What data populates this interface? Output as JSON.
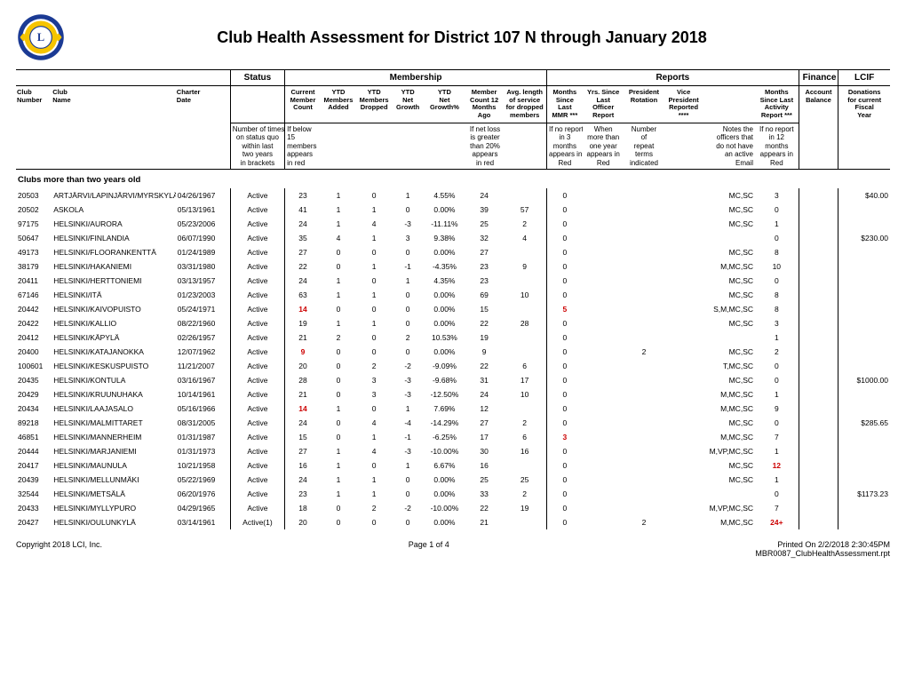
{
  "title": "Club Health Assessment for District 107 N through January 2018",
  "logo_colors": {
    "outer": "#1b3a94",
    "inner": "#f6c400",
    "stroke": "#1b3a94"
  },
  "group_headers": {
    "status": "Status",
    "membership": "Membership",
    "reports": "Reports",
    "finance": "Finance",
    "lcif": "LCIF"
  },
  "col_headers": {
    "club_number": "Club\nNumber",
    "club_name": "Club\nName",
    "charter_date": "Charter\nDate",
    "status_blank": "",
    "current_member_count": "Current\nMember\nCount",
    "ytd_added": "YTD\nMembers\nAdded",
    "ytd_dropped": "YTD\nMembers\nDropped",
    "ytd_net_growth": "YTD\nNet\nGrowth",
    "ytd_net_growth_pct": "YTD\nNet\nGrowth%",
    "member_count_12mo": "Member\nCount 12\nMonths\nAgo",
    "avg_length_service": "Avg. length\nof service\nfor dropped\nmembers",
    "months_since_last_mmr": "Months\nSince\nLast\nMMR ***",
    "yrs_since_last_officer": "Yrs. Since\nLast\nOfficer\nReport",
    "president_rotation": "President\nRotation",
    "vice_president_reported": "Vice\nPresident\nReported\n****",
    "notes_blank": "",
    "months_since_last_activity": "Months\nSince Last\nActivity\nReport ***",
    "account_balance": "Account\nBalance",
    "donations": "Donations\nfor current\nFiscal\nYear"
  },
  "notes": {
    "status": "Number of times\non status quo\nwithin last\ntwo years\nin brackets",
    "low_members": "If below\n15\nmembers\nappears\nin red",
    "net_loss": "If net loss\nis greater\nthan 20%\nappears\nin red",
    "no_report": "If no report\nin 3\nmonths\nappears in\nRed",
    "officer_year": "When\nmore than\none year\nappears in\nRed",
    "repeat_terms": "Number\nof\nrepeat\nterms\nindicated",
    "no_email": "Notes the\nofficers that\ndo not have\nan active\nEmail",
    "activity_12": "If no report\nin 12\nmonths\nappears in\nRed"
  },
  "section_title": "Clubs more than two years old",
  "rows": [
    {
      "num": "20503",
      "name": "ARTJÄRVI/LAPINJÄRVI/MYRSKYLÄ",
      "charter": "04/26/1967",
      "status": "Active",
      "count": "23",
      "added": "1",
      "dropped": "0",
      "net": "1",
      "pct": "4.55%",
      "ago": "24",
      "avglen": "",
      "mmr": "0",
      "yrs": "",
      "rot": "",
      "vp": "",
      "notes": "MC,SC",
      "act": "3",
      "bal": "",
      "don": "$40.00"
    },
    {
      "num": "20502",
      "name": "ASKOLA",
      "charter": "05/13/1961",
      "status": "Active",
      "count": "41",
      "added": "1",
      "dropped": "1",
      "net": "0",
      "pct": "0.00%",
      "ago": "39",
      "avglen": "57",
      "mmr": "0",
      "yrs": "",
      "rot": "",
      "vp": "",
      "notes": "MC,SC",
      "act": "0",
      "bal": "",
      "don": ""
    },
    {
      "num": "97175",
      "name": "HELSINKI/AURORA",
      "charter": "05/23/2006",
      "status": "Active",
      "count": "24",
      "added": "1",
      "dropped": "4",
      "net": "-3",
      "pct": "-11.11%",
      "ago": "25",
      "avglen": "2",
      "mmr": "0",
      "yrs": "",
      "rot": "",
      "vp": "",
      "notes": "MC,SC",
      "act": "1",
      "bal": "",
      "don": ""
    },
    {
      "num": "50647",
      "name": "HELSINKI/FINLANDIA",
      "charter": "06/07/1990",
      "status": "Active",
      "count": "35",
      "added": "4",
      "dropped": "1",
      "net": "3",
      "pct": "9.38%",
      "ago": "32",
      "avglen": "4",
      "mmr": "0",
      "yrs": "",
      "rot": "",
      "vp": "",
      "notes": "",
      "act": "0",
      "bal": "",
      "don": "$230.00"
    },
    {
      "num": "49173",
      "name": "HELSINKI/FLOORANKENTTÄ",
      "charter": "01/24/1989",
      "status": "Active",
      "count": "27",
      "added": "0",
      "dropped": "0",
      "net": "0",
      "pct": "0.00%",
      "ago": "27",
      "avglen": "",
      "mmr": "0",
      "yrs": "",
      "rot": "",
      "vp": "",
      "notes": "MC,SC",
      "act": "8",
      "bal": "",
      "don": ""
    },
    {
      "num": "38179",
      "name": "HELSINKI/HAKANIEMI",
      "charter": "03/31/1980",
      "status": "Active",
      "count": "22",
      "added": "0",
      "dropped": "1",
      "net": "-1",
      "pct": "-4.35%",
      "ago": "23",
      "avglen": "9",
      "mmr": "0",
      "yrs": "",
      "rot": "",
      "vp": "",
      "notes": "M,MC,SC",
      "act": "10",
      "bal": "",
      "don": ""
    },
    {
      "num": "20411",
      "name": "HELSINKI/HERTTONIEMI",
      "charter": "03/13/1957",
      "status": "Active",
      "count": "24",
      "added": "1",
      "dropped": "0",
      "net": "1",
      "pct": "4.35%",
      "ago": "23",
      "avglen": "",
      "mmr": "0",
      "yrs": "",
      "rot": "",
      "vp": "",
      "notes": "MC,SC",
      "act": "0",
      "bal": "",
      "don": ""
    },
    {
      "num": "67146",
      "name": "HELSINKI/ITÄ",
      "charter": "01/23/2003",
      "status": "Active",
      "count": "63",
      "added": "1",
      "dropped": "1",
      "net": "0",
      "pct": "0.00%",
      "ago": "69",
      "avglen": "10",
      "mmr": "0",
      "yrs": "",
      "rot": "",
      "vp": "",
      "notes": "MC,SC",
      "act": "8",
      "bal": "",
      "don": ""
    },
    {
      "num": "20442",
      "name": "HELSINKI/KAIVOPUISTO",
      "charter": "05/24/1971",
      "status": "Active",
      "count": "14",
      "count_red": true,
      "added": "0",
      "dropped": "0",
      "net": "0",
      "pct": "0.00%",
      "ago": "15",
      "avglen": "",
      "mmr": "5",
      "mmr_red": true,
      "yrs": "",
      "rot": "",
      "vp": "",
      "notes": "S,M,MC,SC",
      "act": "8",
      "bal": "",
      "don": ""
    },
    {
      "num": "20422",
      "name": "HELSINKI/KALLIO",
      "charter": "08/22/1960",
      "status": "Active",
      "count": "19",
      "added": "1",
      "dropped": "1",
      "net": "0",
      "pct": "0.00%",
      "ago": "22",
      "avglen": "28",
      "mmr": "0",
      "yrs": "",
      "rot": "",
      "vp": "",
      "notes": "MC,SC",
      "act": "3",
      "bal": "",
      "don": ""
    },
    {
      "num": "20412",
      "name": "HELSINKI/KÄPYLÄ",
      "charter": "02/26/1957",
      "status": "Active",
      "count": "21",
      "added": "2",
      "dropped": "0",
      "net": "2",
      "pct": "10.53%",
      "ago": "19",
      "avglen": "",
      "mmr": "0",
      "yrs": "",
      "rot": "",
      "vp": "",
      "notes": "",
      "act": "1",
      "bal": "",
      "don": ""
    },
    {
      "num": "20400",
      "name": "HELSINKI/KATAJANOKKA",
      "charter": "12/07/1962",
      "status": "Active",
      "count": "9",
      "count_red": true,
      "added": "0",
      "dropped": "0",
      "net": "0",
      "pct": "0.00%",
      "ago": "9",
      "avglen": "",
      "mmr": "0",
      "yrs": "",
      "rot": "2",
      "vp": "",
      "notes": "MC,SC",
      "act": "2",
      "bal": "",
      "don": ""
    },
    {
      "num": "100601",
      "name": "HELSINKI/KESKUSPUISTO",
      "charter": "11/21/2007",
      "status": "Active",
      "count": "20",
      "added": "0",
      "dropped": "2",
      "net": "-2",
      "pct": "-9.09%",
      "ago": "22",
      "avglen": "6",
      "mmr": "0",
      "yrs": "",
      "rot": "",
      "vp": "",
      "notes": "T,MC,SC",
      "act": "0",
      "bal": "",
      "don": ""
    },
    {
      "num": "20435",
      "name": "HELSINKI/KONTULA",
      "charter": "03/16/1967",
      "status": "Active",
      "count": "28",
      "added": "0",
      "dropped": "3",
      "net": "-3",
      "pct": "-9.68%",
      "ago": "31",
      "avglen": "17",
      "mmr": "0",
      "yrs": "",
      "rot": "",
      "vp": "",
      "notes": "MC,SC",
      "act": "0",
      "bal": "",
      "don": "$1000.00"
    },
    {
      "num": "20429",
      "name": "HELSINKI/KRUUNUHAKA",
      "charter": "10/14/1961",
      "status": "Active",
      "count": "21",
      "added": "0",
      "dropped": "3",
      "net": "-3",
      "pct": "-12.50%",
      "ago": "24",
      "avglen": "10",
      "mmr": "0",
      "yrs": "",
      "rot": "",
      "vp": "",
      "notes": "M,MC,SC",
      "act": "1",
      "bal": "",
      "don": ""
    },
    {
      "num": "20434",
      "name": "HELSINKI/LAAJASALO",
      "charter": "05/16/1966",
      "status": "Active",
      "count": "14",
      "count_red": true,
      "added": "1",
      "dropped": "0",
      "net": "1",
      "pct": "7.69%",
      "ago": "12",
      "avglen": "",
      "mmr": "0",
      "yrs": "",
      "rot": "",
      "vp": "",
      "notes": "M,MC,SC",
      "act": "9",
      "bal": "",
      "don": ""
    },
    {
      "num": "89218",
      "name": "HELSINKI/MALMITTARET",
      "charter": "08/31/2005",
      "status": "Active",
      "count": "24",
      "added": "0",
      "dropped": "4",
      "net": "-4",
      "pct": "-14.29%",
      "ago": "27",
      "avglen": "2",
      "mmr": "0",
      "yrs": "",
      "rot": "",
      "vp": "",
      "notes": "MC,SC",
      "act": "0",
      "bal": "",
      "don": "$285.65"
    },
    {
      "num": "46851",
      "name": "HELSINKI/MANNERHEIM",
      "charter": "01/31/1987",
      "status": "Active",
      "count": "15",
      "added": "0",
      "dropped": "1",
      "net": "-1",
      "pct": "-6.25%",
      "ago": "17",
      "avglen": "6",
      "mmr": "3",
      "mmr_red": true,
      "yrs": "",
      "rot": "",
      "vp": "",
      "notes": "M,MC,SC",
      "act": "7",
      "bal": "",
      "don": ""
    },
    {
      "num": "20444",
      "name": "HELSINKI/MARJANIEMI",
      "charter": "01/31/1973",
      "status": "Active",
      "count": "27",
      "added": "1",
      "dropped": "4",
      "net": "-3",
      "pct": "-10.00%",
      "ago": "30",
      "avglen": "16",
      "mmr": "0",
      "yrs": "",
      "rot": "",
      "vp": "",
      "notes": "M,VP,MC,SC",
      "act": "1",
      "bal": "",
      "don": ""
    },
    {
      "num": "20417",
      "name": "HELSINKI/MAUNULA",
      "charter": "10/21/1958",
      "status": "Active",
      "count": "16",
      "added": "1",
      "dropped": "0",
      "net": "1",
      "pct": "6.67%",
      "ago": "16",
      "avglen": "",
      "mmr": "0",
      "yrs": "",
      "rot": "",
      "vp": "",
      "notes": "MC,SC",
      "act": "12",
      "act_red": true,
      "bal": "",
      "don": ""
    },
    {
      "num": "20439",
      "name": "HELSINKI/MELLUNMÄKI",
      "charter": "05/22/1969",
      "status": "Active",
      "count": "24",
      "added": "1",
      "dropped": "1",
      "net": "0",
      "pct": "0.00%",
      "ago": "25",
      "avglen": "25",
      "mmr": "0",
      "yrs": "",
      "rot": "",
      "vp": "",
      "notes": "MC,SC",
      "act": "1",
      "bal": "",
      "don": ""
    },
    {
      "num": "32544",
      "name": "HELSINKI/METSÄLÄ",
      "charter": "06/20/1976",
      "status": "Active",
      "count": "23",
      "added": "1",
      "dropped": "1",
      "net": "0",
      "pct": "0.00%",
      "ago": "33",
      "avglen": "2",
      "mmr": "0",
      "yrs": "",
      "rot": "",
      "vp": "",
      "notes": "",
      "act": "0",
      "bal": "",
      "don": "$1173.23"
    },
    {
      "num": "20433",
      "name": "HELSINKI/MYLLYPURO",
      "charter": "04/29/1965",
      "status": "Active",
      "count": "18",
      "added": "0",
      "dropped": "2",
      "net": "-2",
      "pct": "-10.00%",
      "ago": "22",
      "avglen": "19",
      "mmr": "0",
      "yrs": "",
      "rot": "",
      "vp": "",
      "notes": "M,VP,MC,SC",
      "act": "7",
      "bal": "",
      "don": ""
    },
    {
      "num": "20427",
      "name": "HELSINKI/OULUNKYLÄ",
      "charter": "03/14/1961",
      "status": "Active(1)",
      "count": "20",
      "added": "0",
      "dropped": "0",
      "net": "0",
      "pct": "0.00%",
      "ago": "21",
      "avglen": "",
      "mmr": "0",
      "yrs": "",
      "rot": "2",
      "vp": "",
      "notes": "M,MC,SC",
      "act": "24+",
      "act_red": true,
      "bal": "",
      "don": ""
    }
  ],
  "footer": {
    "copyright": "Copyright 2018 LCI, Inc.",
    "page": "Page 1 of 4",
    "printed": "Printed On 2/2/2018  2:30:45PM",
    "report_id": "MBR0087_ClubHealthAssessment.rpt"
  }
}
